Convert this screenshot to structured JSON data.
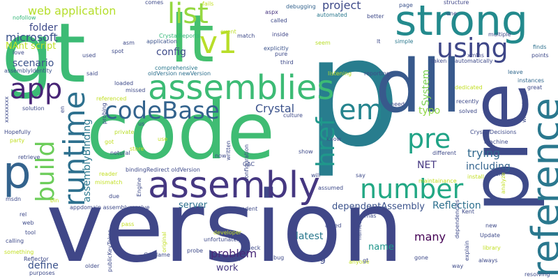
{
  "words": [
    {
      "text": "version",
      "color": "#404788"
    },
    {
      "text": "code",
      "color": "#3FBC73"
    },
    {
      "text": "gt",
      "color": "#3CBB75"
    },
    {
      "text": "lt",
      "color": "#45C06F"
    },
    {
      "text": "p",
      "color": "#287D8E"
    },
    {
      "text": "pre",
      "color": "#3E4A89"
    },
    {
      "text": "strong",
      "color": "#238A8D"
    },
    {
      "text": "dll",
      "color": "#38598C"
    },
    {
      "text": "reference",
      "color": "#2A788E"
    },
    {
      "text": "assembly",
      "color": "#453781"
    },
    {
      "text": "assemblies",
      "color": "#3CBB75"
    },
    {
      "text": "number",
      "color": "#22A884"
    },
    {
      "text": "runtime",
      "color": "#2D708E"
    },
    {
      "text": "codeBase",
      "color": "#33638D"
    },
    {
      "text": "build",
      "color": "#6CCD5A"
    },
    {
      "text": "app",
      "color": "#482576"
    },
    {
      "text": "p",
      "color": "#33638D"
    },
    {
      "text": "list",
      "color": "#95D840"
    },
    {
      "text": "v1",
      "color": "#B8DE29"
    },
    {
      "text": "using",
      "color": "#3F4788"
    },
    {
      "text": "em",
      "color": "#25848E"
    },
    {
      "text": "href",
      "color": "#1F988B"
    },
    {
      "text": "pre",
      "color": "#20A386"
    },
    {
      "text": "project",
      "color": "#3E4A89"
    },
    {
      "text": "web application",
      "color": "#B5DE2B"
    },
    {
      "text": "microsoft",
      "color": "#3B528B"
    },
    {
      "text": "folder",
      "color": "#3E4A89"
    },
    {
      "text": "NAnt script",
      "color": "#BDDF26"
    },
    {
      "text": "config",
      "color": "#3E4A89"
    },
    {
      "text": "scenario",
      "color": "#3B528B"
    },
    {
      "text": "Crystal",
      "color": "#3B528B"
    },
    {
      "text": "typo",
      "color": "#8FD744"
    },
    {
      "text": "System",
      "color": "#7AD151"
    },
    {
      "text": "trying",
      "color": "#31688E"
    },
    {
      "text": "including",
      "color": "#33638D"
    },
    {
      "text": "NET",
      "color": "#453781"
    },
    {
      "text": "assemblyBinding",
      "color": "#2A788E"
    },
    {
      "text": "server",
      "color": "#2D708E"
    },
    {
      "text": "dependentAssembly",
      "color": "#3B528B"
    },
    {
      "text": "Reflection",
      "color": "#2D708E"
    },
    {
      "text": "latest",
      "color": "#2A788E"
    },
    {
      "text": "many",
      "color": "#440154"
    },
    {
      "text": "problem",
      "color": "#482878"
    },
    {
      "text": "name",
      "color": "#1F968B"
    },
    {
      "text": "tag",
      "color": "#3E4A89"
    },
    {
      "text": "work",
      "color": "#453781"
    },
    {
      "text": "define",
      "color": "#3B528B"
    },
    {
      "text": "comes",
      "color": "#3E4A89"
    },
    {
      "text": "fails",
      "color": "#C2DF23"
    },
    {
      "text": "structure",
      "color": "#404788"
    },
    {
      "text": "aspx",
      "color": "#46337F"
    },
    {
      "text": "debugging",
      "color": "#33638D"
    },
    {
      "text": "page",
      "color": "#3B528B"
    },
    {
      "text": "nofollow",
      "color": "#35B779"
    },
    {
      "text": "called",
      "color": "#3E4A89"
    },
    {
      "text": "automated",
      "color": "#2A788E"
    },
    {
      "text": "better",
      "color": "#3E4A89"
    },
    {
      "text": "one",
      "color": "#3E4A89"
    },
    {
      "text": "CrystalReports",
      "color": "#35B779"
    },
    {
      "text": "event",
      "color": "#BDDF26"
    },
    {
      "text": "match",
      "color": "#3E4A89"
    },
    {
      "text": "inside",
      "color": "#404788"
    },
    {
      "text": "multiple",
      "color": "#3E4A89"
    },
    {
      "text": "simple",
      "color": "#2A788E"
    },
    {
      "text": "asm",
      "color": "#3E4A89"
    },
    {
      "text": "application",
      "color": "#3B528B"
    },
    {
      "text": "explicitly",
      "color": "#3B528B"
    },
    {
      "text": "seem",
      "color": "#B8DE29"
    },
    {
      "text": "lt",
      "color": "#3E4A89"
    },
    {
      "text": "finds",
      "color": "#2D708E"
    },
    {
      "text": "points",
      "color": "#3E4A89"
    },
    {
      "text": "love",
      "color": "#3E4A89"
    },
    {
      "text": "used",
      "color": "#3E4A89"
    },
    {
      "text": "spot",
      "color": "#3E4A89"
    },
    {
      "text": "pure",
      "color": "#3E4A89"
    },
    {
      "text": "taken",
      "color": "#3E4A89"
    },
    {
      "text": "xmlns",
      "color": "#404788"
    },
    {
      "text": "automatically",
      "color": "#3E4A89"
    },
    {
      "text": "assemblyIdentity",
      "color": "#3B528B"
    },
    {
      "text": "third",
      "color": "#3E4A89"
    },
    {
      "text": "comprehensive",
      "color": "#2A788E"
    },
    {
      "text": "leave",
      "color": "#31688E"
    },
    {
      "text": "said",
      "color": "#3E4A89"
    },
    {
      "text": "oldVersion newVersion",
      "color": "#2D708E"
    },
    {
      "text": "listening",
      "color": "#BDDF26"
    },
    {
      "text": "reporting",
      "color": "#3E4A89"
    },
    {
      "text": "instances",
      "color": "#31688E"
    },
    {
      "text": "great",
      "color": "#3E4A89"
    },
    {
      "text": "loaded",
      "color": "#3E4A89"
    },
    {
      "text": "missed",
      "color": "#3E4A89"
    },
    {
      "text": "dedicated",
      "color": "#C2DF23"
    },
    {
      "text": "recently",
      "color": "#3E4A89"
    },
    {
      "text": "without",
      "color": "#3E4A89"
    },
    {
      "text": "referenced",
      "color": "#C2DF23"
    },
    {
      "text": "need",
      "color": "#3E4A89"
    },
    {
      "text": "solved",
      "color": "#3E4A89"
    },
    {
      "text": "solution",
      "color": "#3E4A89"
    },
    {
      "text": "probing",
      "color": "#3E4A89"
    },
    {
      "text": "culture",
      "color": "#3E4A89"
    },
    {
      "text": "us",
      "color": "#3E4A89"
    },
    {
      "text": "Hopefully",
      "color": "#3E4A89"
    },
    {
      "text": "private",
      "color": "#B8DE29"
    },
    {
      "text": "configuration",
      "color": "#3E4A89"
    },
    {
      "text": "CrystalDecisions",
      "color": "#3E4A89"
    },
    {
      "text": "party",
      "color": "#C2DF23"
    },
    {
      "text": "got",
      "color": "#C2DF23"
    },
    {
      "text": "written",
      "color": "#3E4A89"
    },
    {
      "text": "know",
      "color": "#3E4A89"
    },
    {
      "text": "machine",
      "color": "#3E4A89"
    },
    {
      "text": "retrieve",
      "color": "#3E4A89"
    },
    {
      "text": "use",
      "color": "#C2DF23"
    },
    {
      "text": "store",
      "color": "#C2DF23"
    },
    {
      "text": "netural",
      "color": "#3E4A89"
    },
    {
      "text": "now",
      "color": "#3E4A89"
    },
    {
      "text": "show",
      "color": "#3E4A89"
    },
    {
      "text": "different",
      "color": "#3E4A89"
    },
    {
      "text": "urn",
      "color": "#3E4A89"
    },
    {
      "text": "install",
      "color": "#C2DF23"
    },
    {
      "text": "reader",
      "color": "#C2DF23"
    },
    {
      "text": "bindingRedirect oldVersion",
      "color": "#3E4A89"
    },
    {
      "text": "GAC",
      "color": "#3E4A89"
    },
    {
      "text": "will",
      "color": "#3E4A89"
    },
    {
      "text": "say",
      "color": "#3E4A89"
    },
    {
      "text": "mismatch",
      "color": "#C2DF23"
    },
    {
      "text": "maintainance",
      "color": "#C2DF23"
    },
    {
      "text": "analyze",
      "color": "#C2DF23"
    },
    {
      "text": "Engine",
      "color": "#3E4A89"
    },
    {
      "text": "due",
      "color": "#3E4A89"
    },
    {
      "text": "assumed",
      "color": "#3E4A89"
    },
    {
      "text": "msdn",
      "color": "#3E4A89"
    },
    {
      "text": "appdomain assemblyresolve",
      "color": "#3E4A89"
    },
    {
      "text": "dependent",
      "color": "#3E4A89"
    },
    {
      "text": "found",
      "color": "#3E4A89"
    },
    {
      "text": "Kent",
      "color": "#3E4A89"
    },
    {
      "text": "rel",
      "color": "#3E4A89"
    },
    {
      "text": "web",
      "color": "#3E4A89"
    },
    {
      "text": "schemas",
      "color": "#3E4A89"
    },
    {
      "text": "asked",
      "color": "#3E4A89"
    },
    {
      "text": "tool",
      "color": "#3E4A89"
    },
    {
      "text": "pass",
      "color": "#C2DF23"
    },
    {
      "text": "developer",
      "color": "#C2DF23"
    },
    {
      "text": "unfortunately",
      "color": "#3E4A89"
    },
    {
      "text": "calling",
      "color": "#3E4A89"
    },
    {
      "text": "check",
      "color": "#3E4A89"
    },
    {
      "text": "something",
      "color": "#C2DF23"
    },
    {
      "text": "ASP",
      "color": "#3E4A89"
    },
    {
      "text": "Update",
      "color": "#3E4A89"
    },
    {
      "text": "library",
      "color": "#C2DF23"
    },
    {
      "text": "Reflector",
      "color": "#3E4A89"
    },
    {
      "text": "GetName",
      "color": "#3E4A89"
    },
    {
      "text": "probe",
      "color": "#3E4A89"
    },
    {
      "text": "bug",
      "color": "#3E4A89"
    },
    {
      "text": "anyone",
      "color": "#C2DF23"
    },
    {
      "text": "gone",
      "color": "#3E4A89"
    },
    {
      "text": "always",
      "color": "#3E4A89"
    },
    {
      "text": "way",
      "color": "#3E4A89"
    },
    {
      "text": "older",
      "color": "#3E4A89"
    },
    {
      "text": "resolving",
      "color": "#3E4A89"
    },
    {
      "text": "publicKeyToken",
      "color": "#3E4A89"
    },
    {
      "text": "original",
      "color": "#C2DF23"
    },
    {
      "text": "purposes",
      "color": "#3E4A89"
    },
    {
      "text": "explain",
      "color": "#3E4A89"
    },
    {
      "text": "new",
      "color": "#3E4A89"
    },
    {
      "text": "named",
      "color": "#3E4A89"
    },
    {
      "text": "dependencies",
      "color": "#3E4A89"
    },
    {
      "text": "gt",
      "color": "#3E4A89"
    },
    {
      "text": "en",
      "color": "#3E4A89"
    },
    {
      "text": "xxxxxxxx",
      "color": "#3E4A89"
    },
    {
      "text": "bin",
      "color": "#C2DF23"
    }
  ]
}
